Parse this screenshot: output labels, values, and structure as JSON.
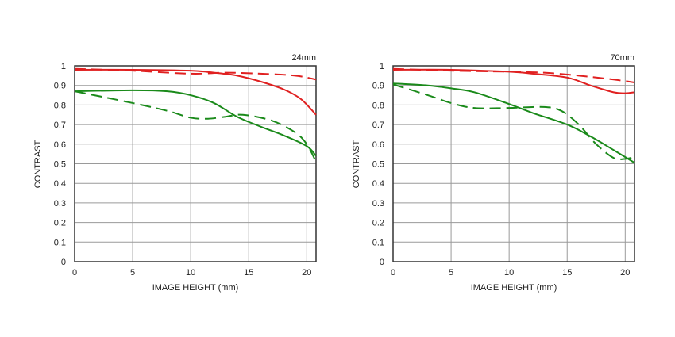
{
  "chart_data": [
    {
      "type": "line",
      "title": "24mm",
      "xlabel": "IMAGE HEIGHT (mm)",
      "ylabel": "CONTRAST",
      "xlim": [
        0,
        20.8
      ],
      "ylim": [
        0,
        1
      ],
      "xticks": [
        "0",
        "5",
        "10",
        "15",
        "20"
      ],
      "yticks": [
        "0",
        "0.1",
        "0.2",
        "0.3",
        "0.4",
        "0.5",
        "0.6",
        "0.7",
        "0.8",
        "0.9",
        "1"
      ],
      "grid": true,
      "series": [
        {
          "name": "red-sagittal",
          "color": "#e02020",
          "dash": false,
          "x": [
            0,
            5,
            10,
            12,
            14,
            16,
            18,
            19.5,
            20.8
          ],
          "y": [
            0.98,
            0.98,
            0.975,
            0.965,
            0.95,
            0.92,
            0.88,
            0.83,
            0.75
          ]
        },
        {
          "name": "red-meridional",
          "color": "#e02020",
          "dash": true,
          "x": [
            0,
            5,
            10,
            13,
            16,
            19,
            20.8
          ],
          "y": [
            0.985,
            0.975,
            0.96,
            0.965,
            0.96,
            0.95,
            0.93
          ]
        },
        {
          "name": "green-sagittal",
          "color": "#1a8a1a",
          "dash": false,
          "x": [
            0,
            5,
            8,
            10,
            12,
            14,
            16,
            18,
            20,
            20.8
          ],
          "y": [
            0.87,
            0.875,
            0.87,
            0.85,
            0.81,
            0.74,
            0.69,
            0.645,
            0.59,
            0.54
          ]
        },
        {
          "name": "green-meridional",
          "color": "#1a8a1a",
          "dash": true,
          "x": [
            0,
            5,
            8,
            10,
            11.5,
            13,
            14.5,
            17,
            19,
            20,
            20.8
          ],
          "y": [
            0.87,
            0.81,
            0.77,
            0.735,
            0.73,
            0.74,
            0.75,
            0.72,
            0.66,
            0.6,
            0.51
          ]
        }
      ]
    },
    {
      "type": "line",
      "title": "70mm",
      "xlabel": "IMAGE HEIGHT (mm)",
      "ylabel": "CONTRAST",
      "xlim": [
        0,
        20.8
      ],
      "ylim": [
        0,
        1
      ],
      "xticks": [
        "0",
        "5",
        "10",
        "15",
        "20"
      ],
      "yticks": [
        "0",
        "0.1",
        "0.2",
        "0.3",
        "0.4",
        "0.5",
        "0.6",
        "0.7",
        "0.8",
        "0.9",
        "1"
      ],
      "grid": true,
      "series": [
        {
          "name": "red-sagittal",
          "color": "#e02020",
          "dash": false,
          "x": [
            0,
            5,
            10,
            12,
            15,
            17,
            19,
            20,
            20.8
          ],
          "y": [
            0.98,
            0.98,
            0.97,
            0.96,
            0.94,
            0.9,
            0.865,
            0.86,
            0.865
          ]
        },
        {
          "name": "red-meridional",
          "color": "#e02020",
          "dash": true,
          "x": [
            0,
            5,
            10,
            13,
            16,
            19,
            20.8
          ],
          "y": [
            0.985,
            0.975,
            0.97,
            0.965,
            0.95,
            0.93,
            0.915
          ]
        },
        {
          "name": "green-sagittal",
          "color": "#1a8a1a",
          "dash": false,
          "x": [
            0,
            3,
            5,
            7,
            10,
            12,
            15,
            17,
            19,
            20.8
          ],
          "y": [
            0.91,
            0.9,
            0.885,
            0.865,
            0.805,
            0.76,
            0.7,
            0.64,
            0.57,
            0.505
          ]
        },
        {
          "name": "green-meridional",
          "color": "#1a8a1a",
          "dash": true,
          "x": [
            0,
            3,
            5,
            7,
            10,
            13,
            14.5,
            16,
            17.5,
            19,
            20,
            20.8
          ],
          "y": [
            0.905,
            0.85,
            0.81,
            0.785,
            0.785,
            0.79,
            0.77,
            0.7,
            0.6,
            0.53,
            0.525,
            0.535
          ]
        }
      ]
    }
  ]
}
